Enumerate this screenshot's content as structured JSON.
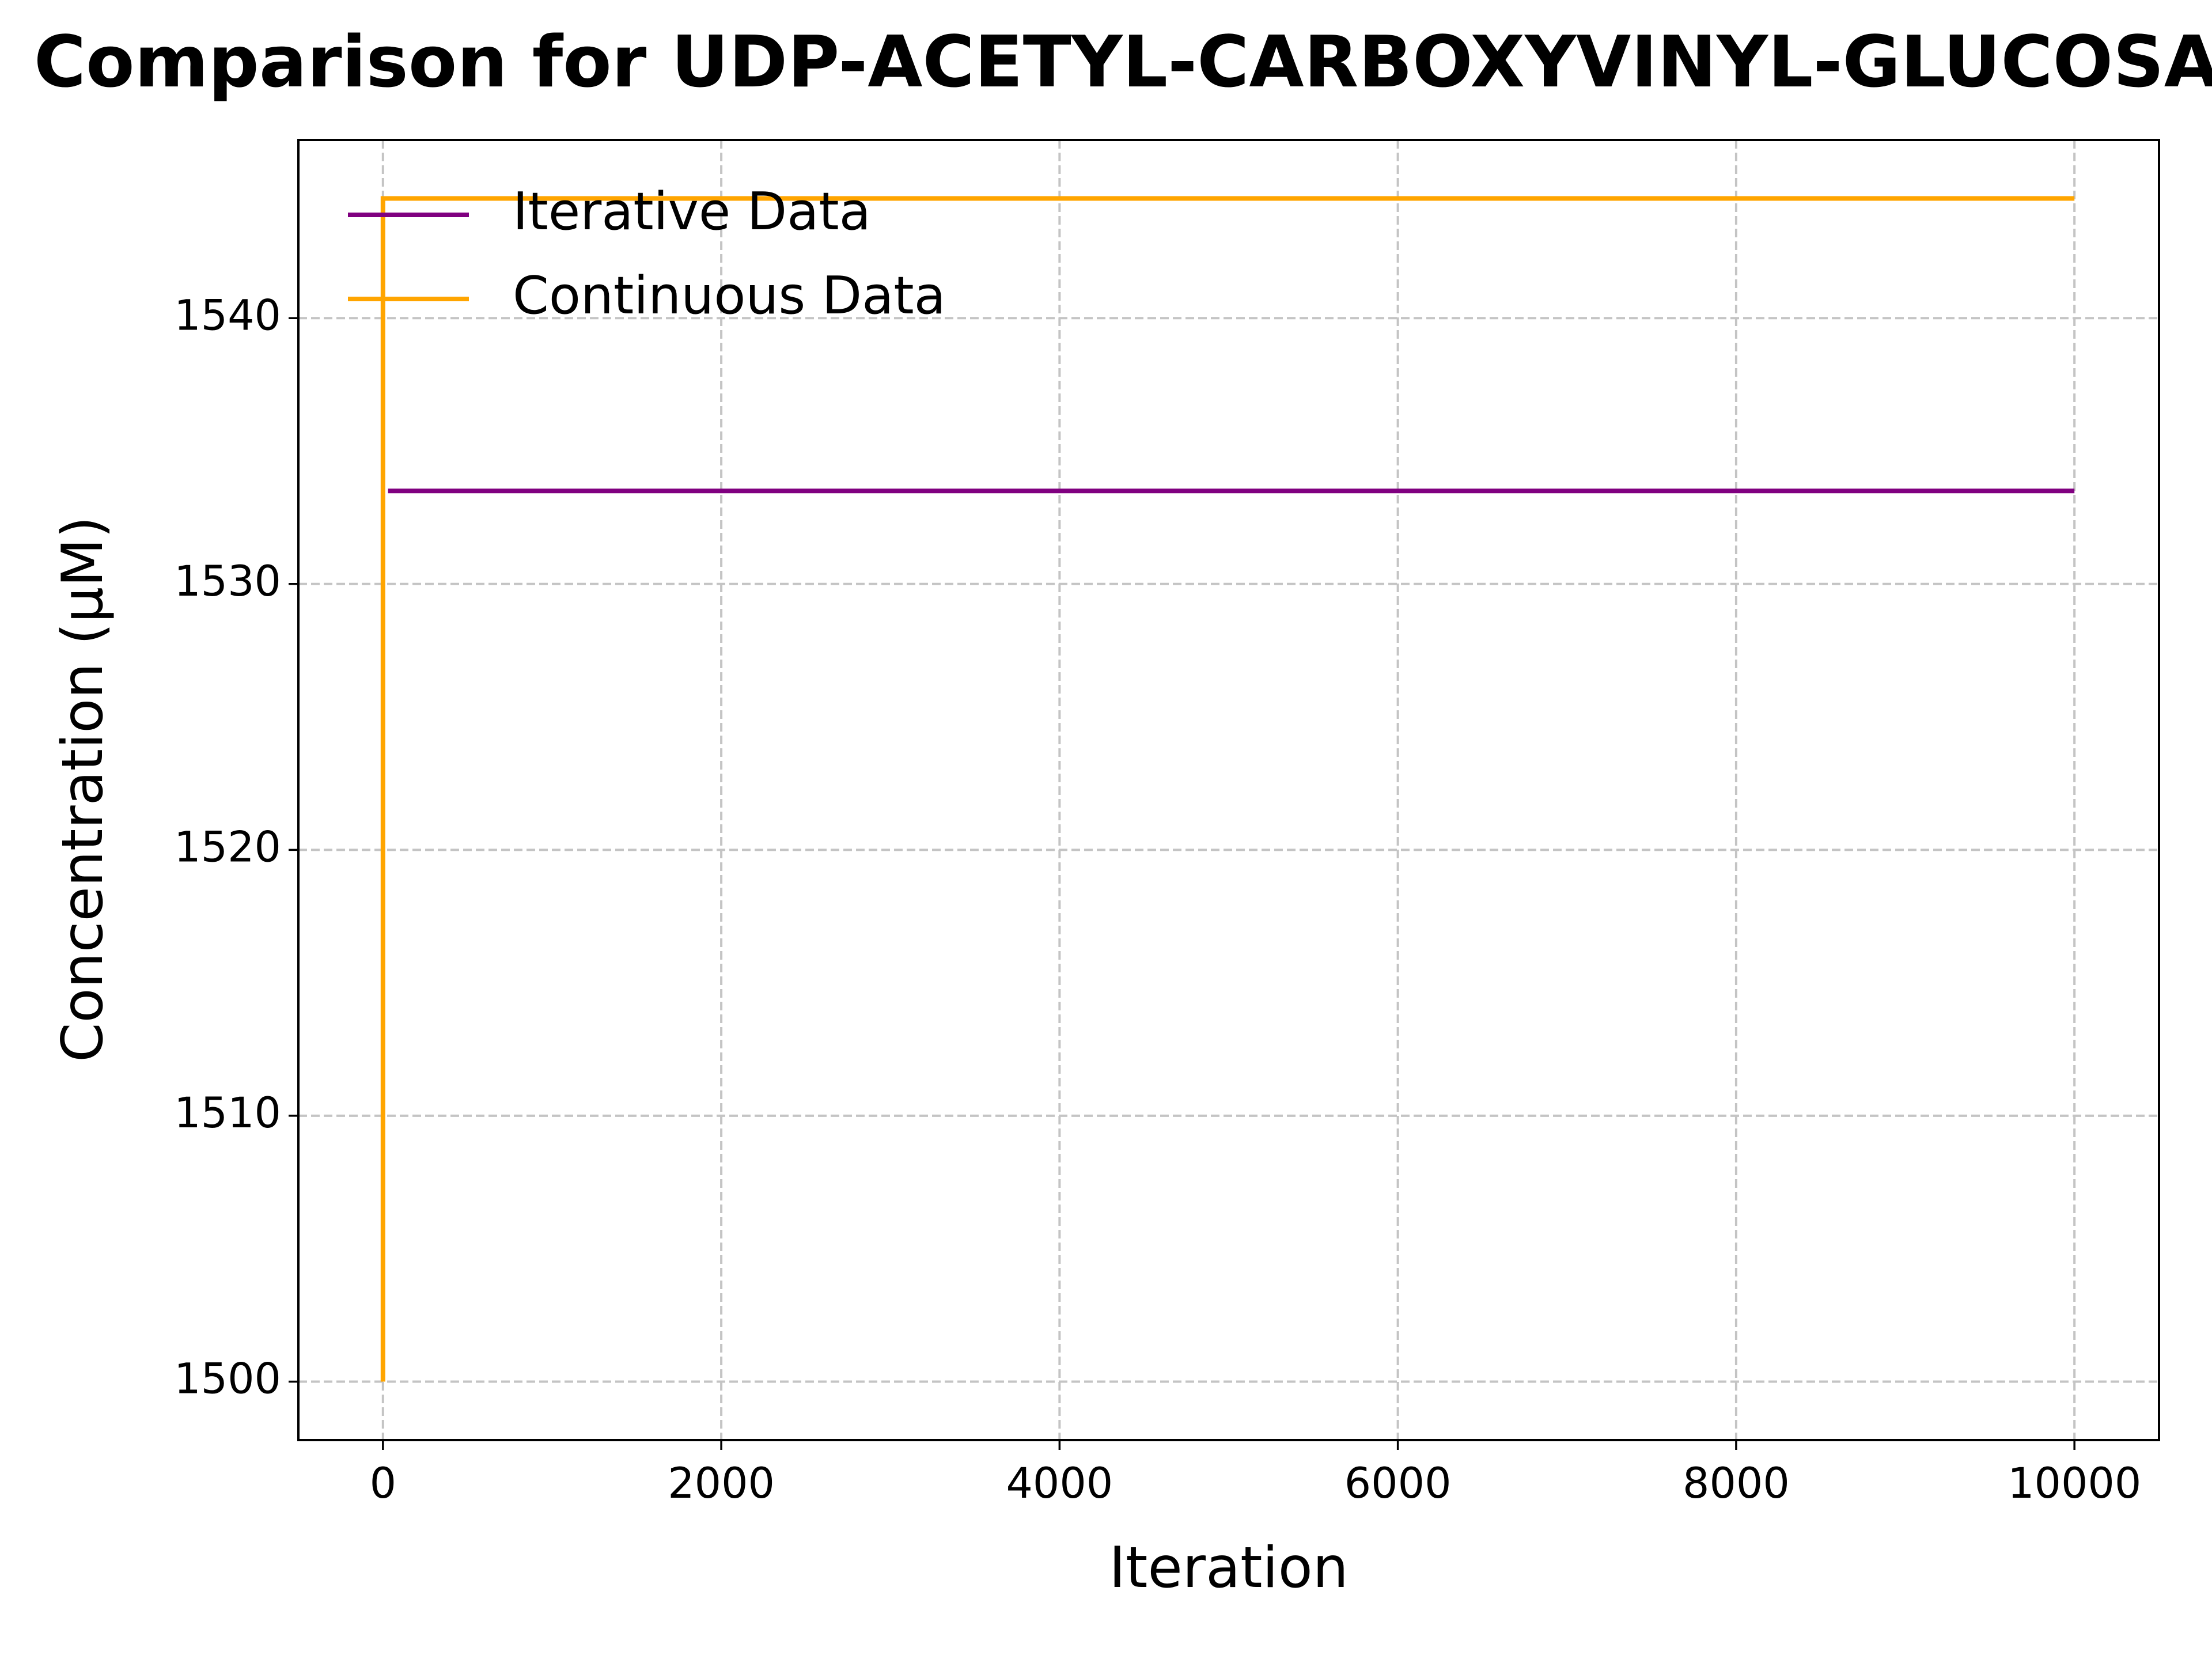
{
  "chart_data": {
    "type": "line",
    "title": "Comparison for UDP-ACETYL-CARBOXYVINYL-GLUCOSAMINE",
    "xlabel": "Iteration",
    "ylabel": "Concentration (μM)",
    "xlim": [
      -500,
      10500
    ],
    "ylim": [
      1497.8,
      1546.7
    ],
    "x_ticks": [
      0,
      2000,
      4000,
      6000,
      8000,
      10000
    ],
    "x_tick_labels": [
      "0",
      "2000",
      "4000",
      "6000",
      "8000",
      "10000"
    ],
    "y_ticks": [
      1500,
      1510,
      1520,
      1530,
      1540
    ],
    "y_tick_labels": [
      "1500",
      "1510",
      "1520",
      "1530",
      "1540"
    ],
    "grid": true,
    "legend": "upper left",
    "series": [
      {
        "name": "Iterative Data",
        "color": "#800080",
        "x": [
          30,
          10000
        ],
        "y": [
          1533.5,
          1533.5
        ]
      },
      {
        "name": "Continuous Data",
        "color": "#FFA500",
        "x": [
          0,
          0,
          10000
        ],
        "y": [
          1500,
          1544.5,
          1544.5
        ]
      }
    ]
  }
}
